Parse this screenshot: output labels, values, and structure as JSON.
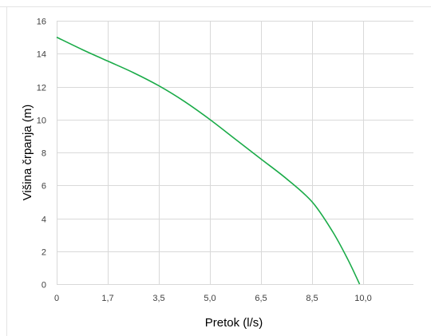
{
  "chart_data": {
    "type": "line",
    "xlabel": "Pretok (l/s)",
    "ylabel": "Višina črpanja (m)",
    "x_tick_labels": [
      "0",
      "1,7",
      "3,5",
      "5,0",
      "6,5",
      "8,5",
      "10,0"
    ],
    "y_ticks": [
      0,
      2,
      4,
      6,
      8,
      10,
      12,
      14,
      16
    ],
    "ylim": [
      0,
      16
    ],
    "grid": true,
    "series": [
      {
        "color": "#1aab48",
        "points": [
          {
            "x_index": 0.0,
            "y": 15.0
          },
          {
            "x_index": 0.5,
            "y": 14.25
          },
          {
            "x_index": 1.0,
            "y": 13.55
          },
          {
            "x_index": 1.5,
            "y": 12.85
          },
          {
            "x_index": 2.0,
            "y": 12.05
          },
          {
            "x_index": 2.5,
            "y": 11.1
          },
          {
            "x_index": 3.0,
            "y": 10.0
          },
          {
            "x_index": 3.5,
            "y": 8.8
          },
          {
            "x_index": 4.0,
            "y": 7.6
          },
          {
            "x_index": 4.5,
            "y": 6.4
          },
          {
            "x_index": 5.0,
            "y": 5.0
          },
          {
            "x_index": 5.4,
            "y": 3.2
          },
          {
            "x_index": 5.7,
            "y": 1.5
          },
          {
            "x_index": 5.93,
            "y": 0.0
          }
        ]
      }
    ]
  }
}
